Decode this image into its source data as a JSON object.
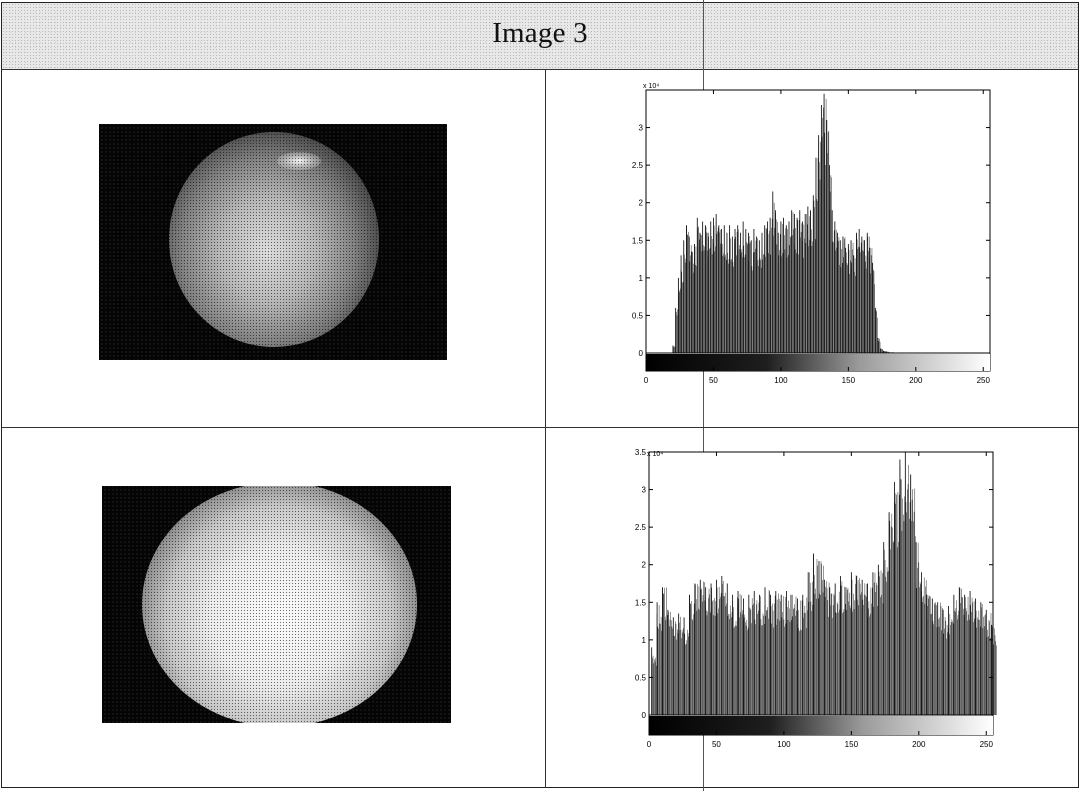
{
  "header": {
    "title": "Image 3"
  },
  "photos": [
    {
      "name": "eye-image-original"
    },
    {
      "name": "eye-image-enhanced"
    }
  ],
  "chart_data": [
    {
      "type": "bar",
      "title": "",
      "xlabel": "",
      "ylabel": "",
      "y_exponent_label": "x 10⁴",
      "xlim": [
        0,
        255
      ],
      "ylim": [
        -0.25,
        3.5
      ],
      "x_ticks": [
        0,
        50,
        100,
        150,
        200,
        250
      ],
      "y_ticks": [
        0,
        0.5,
        1,
        1.5,
        2,
        2.5,
        3
      ],
      "grid": false,
      "colorbar": "grayscale",
      "x": [
        20,
        22,
        24,
        26,
        28,
        30,
        32,
        34,
        36,
        38,
        40,
        42,
        44,
        46,
        48,
        50,
        52,
        54,
        56,
        58,
        60,
        62,
        64,
        66,
        68,
        70,
        72,
        74,
        76,
        78,
        80,
        82,
        84,
        86,
        88,
        90,
        92,
        94,
        96,
        98,
        100,
        102,
        104,
        106,
        108,
        110,
        112,
        114,
        116,
        118,
        120,
        122,
        124,
        126,
        128,
        130,
        132,
        134,
        136,
        138,
        140,
        142,
        144,
        146,
        148,
        150,
        152,
        154,
        156,
        158,
        160,
        162,
        164,
        166,
        168,
        170,
        172,
        174,
        176,
        178,
        180,
        184,
        190,
        200,
        210,
        220,
        230,
        240,
        250
      ],
      "values": [
        0.1,
        0.6,
        1.0,
        1.3,
        1.5,
        1.7,
        1.55,
        1.35,
        1.45,
        1.8,
        1.6,
        1.75,
        1.7,
        1.6,
        1.75,
        1.8,
        1.85,
        1.7,
        1.65,
        1.7,
        1.6,
        1.7,
        1.55,
        1.65,
        1.7,
        1.6,
        1.75,
        1.65,
        1.6,
        1.5,
        1.65,
        1.55,
        1.5,
        1.6,
        1.7,
        1.75,
        1.8,
        2.15,
        1.9,
        1.6,
        1.75,
        1.8,
        1.7,
        1.75,
        1.9,
        1.85,
        1.8,
        1.9,
        1.75,
        1.85,
        1.95,
        1.9,
        2.1,
        2.6,
        2.9,
        3.3,
        3.45,
        3.1,
        2.5,
        1.9,
        1.75,
        1.6,
        1.5,
        1.55,
        1.4,
        1.45,
        1.5,
        1.3,
        1.6,
        1.65,
        1.55,
        1.5,
        1.6,
        1.4,
        1.2,
        0.6,
        0.2,
        0.06,
        0.03,
        0.02,
        0.01,
        0.0,
        0.0,
        0.0,
        0.0,
        0.0,
        0.0,
        0.0,
        0.0
      ]
    },
    {
      "type": "bar",
      "title": "",
      "xlabel": "",
      "ylabel": "",
      "y_exponent_label": "x 10⁴",
      "xlim": [
        0,
        255
      ],
      "ylim": [
        -0.25,
        3.5
      ],
      "x_ticks": [
        0,
        50,
        100,
        150,
        200,
        250
      ],
      "y_ticks": [
        0,
        0.5,
        1,
        1.5,
        2,
        2.5,
        3,
        3.5
      ],
      "grid": false,
      "colorbar": "grayscale",
      "x": [
        2,
        6,
        10,
        14,
        18,
        22,
        26,
        30,
        34,
        38,
        42,
        46,
        50,
        54,
        58,
        62,
        66,
        70,
        74,
        78,
        82,
        86,
        90,
        94,
        98,
        102,
        106,
        110,
        114,
        118,
        122,
        126,
        130,
        134,
        138,
        142,
        146,
        150,
        154,
        158,
        162,
        166,
        170,
        174,
        178,
        182,
        186,
        190,
        194,
        198,
        202,
        206,
        210,
        214,
        218,
        222,
        226,
        230,
        234,
        238,
        242,
        246,
        250,
        254
      ],
      "values": [
        0.9,
        1.5,
        1.7,
        1.4,
        1.3,
        1.35,
        1.3,
        1.6,
        1.75,
        1.8,
        1.7,
        1.75,
        1.8,
        1.85,
        1.75,
        1.6,
        1.65,
        1.55,
        1.6,
        1.65,
        1.6,
        1.7,
        1.6,
        1.65,
        1.6,
        1.65,
        1.6,
        1.55,
        1.6,
        1.9,
        2.15,
        2.05,
        1.8,
        1.7,
        1.75,
        1.85,
        1.7,
        1.9,
        1.85,
        1.8,
        1.75,
        1.9,
        2.0,
        2.3,
        2.7,
        3.1,
        3.4,
        3.5,
        3.2,
        2.3,
        1.9,
        1.6,
        1.55,
        1.5,
        1.4,
        1.45,
        1.6,
        1.7,
        1.6,
        1.65,
        1.55,
        1.5,
        1.4,
        1.2
      ]
    }
  ]
}
